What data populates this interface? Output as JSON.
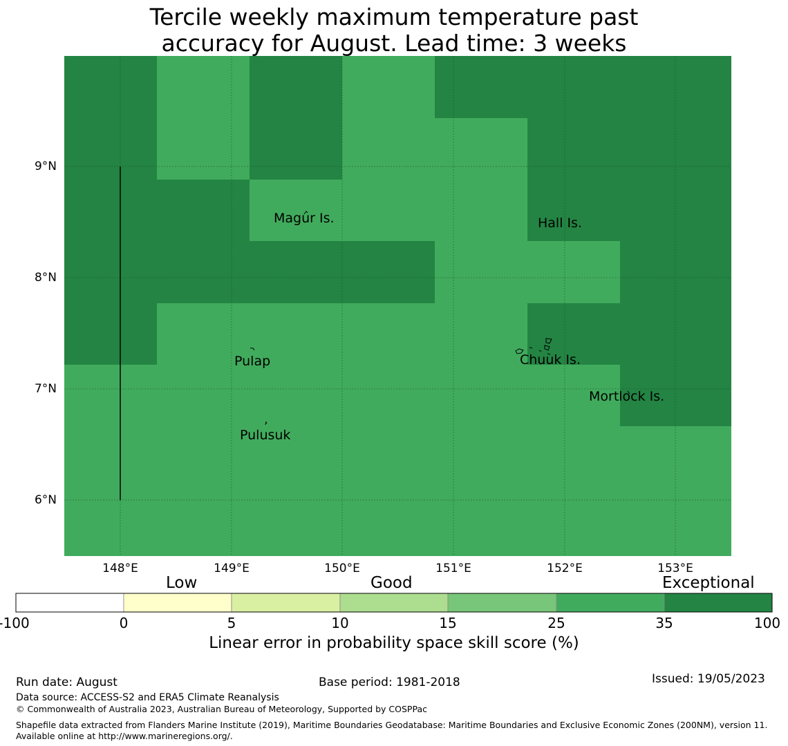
{
  "title": "Tercile weekly maximum temperature past\naccuracy for August. Lead time: 3 weeks",
  "map": {
    "colors": {
      "exceptional": "#238443",
      "good_high": "#41ab5d",
      "background": "#ffffff",
      "grid": "#1a5a2a"
    },
    "lat_ticks": [
      "9°N",
      "8°N",
      "7°N",
      "6°N"
    ],
    "lon_ticks": [
      "148°E",
      "149°E",
      "150°E",
      "151°E",
      "152°E",
      "153°E"
    ],
    "places": [
      "Magur Is.",
      "Hall Is.",
      "Pulap",
      "Chuuk Is.",
      "Mortlock Is.",
      "Pulusuk"
    ]
  },
  "colorbar": {
    "categories": [
      "Low",
      "Good",
      "Exceptional"
    ],
    "ticks": [
      "-100",
      "0",
      "5",
      "10",
      "15",
      "25",
      "35",
      "100"
    ],
    "colors": [
      "#ffffff",
      "#ffffcc",
      "#d9f0a3",
      "#addd8e",
      "#78c679",
      "#41ab5d",
      "#238443"
    ],
    "title": "Linear error in probability space skill score (%)"
  },
  "footer": {
    "run_date": "Run date: August",
    "base_period": "Base period: 1981-2018",
    "issued": "Issued: 19/05/2023",
    "data_source": "Data source: ACCESS-S2 and ERA5 Climate Reanalysis",
    "copyright": "© Commonwealth of Australia 2023, Australian Bureau of Meteorology, Supported by COSPPac",
    "shapefile": "Shapefile data extracted from Flanders Marine Institute (2019), Maritime Boundaries Geodatabase: Maritime Boundaries and Exclusive Economic Zones (200NM), version 11. Available online at http://www.marineregions.org/."
  }
}
